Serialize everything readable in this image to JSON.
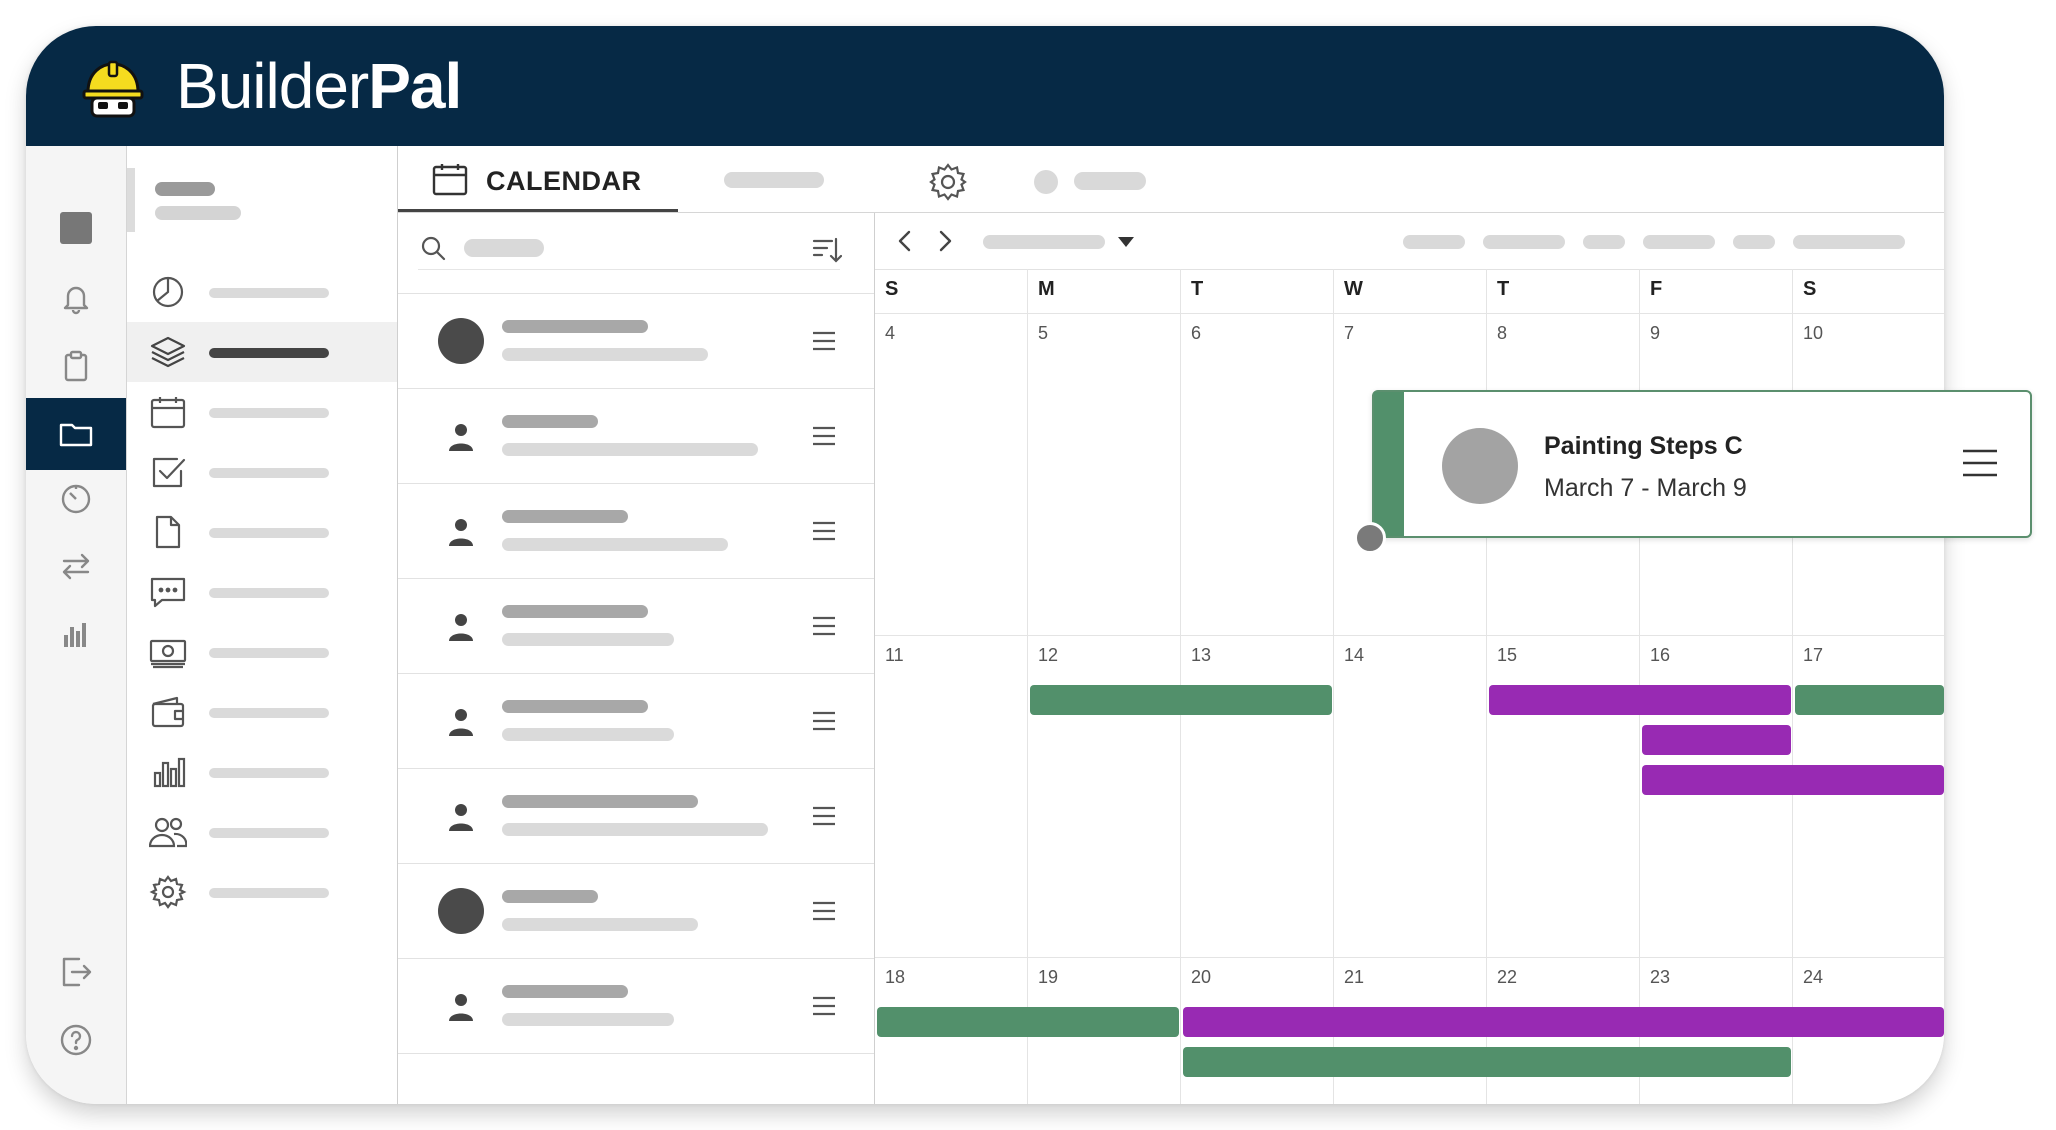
{
  "brand": {
    "name_light": "Builder",
    "name_bold": "Pal"
  },
  "tabs": {
    "calendar_label": "CALENDAR"
  },
  "calendar": {
    "weekdays": [
      "S",
      "M",
      "T",
      "W",
      "T",
      "F",
      "S"
    ],
    "weeks": [
      [
        "4",
        "5",
        "6",
        "7",
        "8",
        "9",
        "10"
      ],
      [
        "11",
        "12",
        "13",
        "14",
        "15",
        "16",
        "17"
      ],
      [
        "18",
        "19",
        "20",
        "21",
        "22",
        "23",
        "24"
      ]
    ],
    "events": [
      {
        "color": "green",
        "week": 1,
        "start_day": 1,
        "end_day": 2,
        "lane": 0
      },
      {
        "color": "purple",
        "week": 1,
        "start_day": 4,
        "end_day": 5,
        "lane": 0
      },
      {
        "color": "green",
        "week": 1,
        "start_day": 6,
        "end_day": 6,
        "lane": 0
      },
      {
        "color": "purple",
        "week": 1,
        "start_day": 5,
        "end_day": 5,
        "lane": 1
      },
      {
        "color": "purple",
        "week": 1,
        "start_day": 5,
        "end_day": 6,
        "lane": 2
      },
      {
        "color": "green",
        "week": 2,
        "start_day": 0,
        "end_day": 1,
        "lane": 0
      },
      {
        "color": "purple",
        "week": 2,
        "start_day": 2,
        "end_day": 6,
        "lane": 0
      },
      {
        "color": "green",
        "week": 2,
        "start_day": 2,
        "end_day": 5,
        "lane": 1
      }
    ]
  },
  "event_popup": {
    "title": "Painting Steps C",
    "dates": "March 7 - March 9"
  },
  "colors": {
    "navy": "#062945",
    "green": "#52906b",
    "purple": "#982ab3",
    "helmet_yellow": "#f5dc1f"
  },
  "icons": {
    "rail": [
      "square-icon",
      "bell-icon",
      "clipboard-icon",
      "folder-icon",
      "timer-icon",
      "transfer-icon",
      "bar-chart-icon",
      "logout-icon",
      "help-icon"
    ],
    "nav": [
      "pie-chart-icon",
      "layers-icon",
      "calendar-icon",
      "checkbox-icon",
      "document-icon",
      "chat-icon",
      "money-icon",
      "wallet-icon",
      "bar-chart-icon",
      "users-icon",
      "gear-icon"
    ]
  }
}
